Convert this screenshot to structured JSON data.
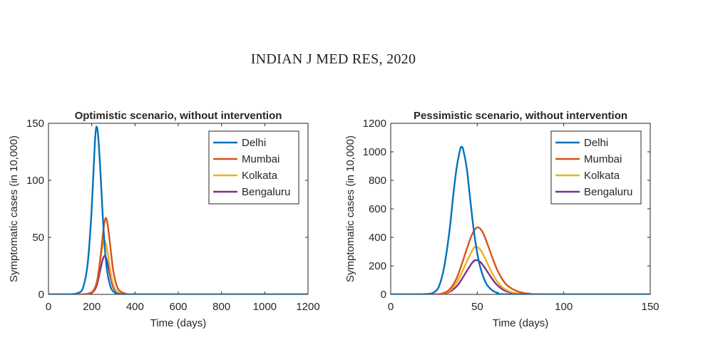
{
  "page": {
    "header": "INDIAN J MED RES, 2020"
  },
  "colors": {
    "Delhi": "#0072bd",
    "Mumbai": "#d95319",
    "Kolkata": "#edb120",
    "Bengaluru": "#7e2f8e",
    "axis": "#262626"
  },
  "chart_data": [
    {
      "type": "line",
      "title": "Optimistic scenario, without intervention",
      "xlabel": "Time (days)",
      "ylabel": "Symptomatic cases (in 10,000)",
      "xlim": [
        0,
        1200
      ],
      "ylim": [
        0,
        150
      ],
      "xticks": [
        0,
        200,
        400,
        600,
        800,
        1000,
        1200
      ],
      "yticks": [
        0,
        50,
        100,
        150
      ],
      "legend_position": "top-right",
      "grid": false,
      "series": [
        {
          "name": "Delhi",
          "peak_x": 222,
          "peak_y": 147,
          "x": [
            0,
            100,
            140,
            160,
            180,
            195,
            205,
            215,
            222,
            230,
            240,
            250,
            260,
            270,
            285,
            300,
            330,
            400,
            1200
          ],
          "y": [
            0,
            0.1,
            1.5,
            6,
            25,
            60,
            95,
            135,
            147,
            138,
            108,
            72,
            42,
            22,
            8,
            2.5,
            0.3,
            0,
            0
          ]
        },
        {
          "name": "Mumbai",
          "peak_x": 265,
          "peak_y": 67,
          "x": [
            0,
            150,
            190,
            210,
            225,
            240,
            250,
            258,
            265,
            272,
            280,
            290,
            300,
            315,
            330,
            360,
            420,
            1200
          ],
          "y": [
            0,
            0.1,
            1,
            4,
            12,
            32,
            50,
            62,
            67,
            63,
            52,
            35,
            20,
            8,
            3,
            0.5,
            0,
            0
          ]
        },
        {
          "name": "Kolkata",
          "peak_x": 258,
          "peak_y": 47,
          "x": [
            0,
            150,
            190,
            210,
            225,
            238,
            248,
            258,
            266,
            275,
            285,
            295,
            310,
            325,
            350,
            420,
            1200
          ],
          "y": [
            0,
            0.1,
            1,
            4,
            12,
            28,
            40,
            47,
            44,
            35,
            22,
            12,
            4,
            1.5,
            0.3,
            0,
            0
          ]
        },
        {
          "name": "Bengaluru",
          "peak_x": 260,
          "peak_y": 34,
          "x": [
            0,
            150,
            190,
            210,
            225,
            238,
            250,
            260,
            268,
            278,
            288,
            300,
            315,
            330,
            360,
            420,
            1200
          ],
          "y": [
            0,
            0.1,
            0.8,
            3,
            9,
            20,
            30,
            34,
            31,
            23,
            14,
            6,
            2,
            0.6,
            0.1,
            0,
            0
          ]
        }
      ]
    },
    {
      "type": "line",
      "title": "Pessimistic scenario, without intervention",
      "xlabel": "Time (days)",
      "ylabel": "Symptomatic cases (in 10,000)",
      "xlim": [
        0,
        150
      ],
      "ylim": [
        0,
        1200
      ],
      "xticks": [
        0,
        50,
        100,
        150
      ],
      "yticks": [
        0,
        200,
        400,
        600,
        800,
        1000,
        1200
      ],
      "legend_position": "top-right",
      "grid": false,
      "series": [
        {
          "name": "Delhi",
          "peak_x": 41,
          "peak_y": 1035,
          "x": [
            0,
            20,
            25,
            28,
            31,
            34,
            36,
            38,
            40,
            41,
            42,
            44,
            46,
            48,
            50,
            52,
            55,
            58,
            62,
            70,
            150
          ],
          "y": [
            0,
            2,
            15,
            60,
            200,
            450,
            680,
            880,
            1010,
            1035,
            1010,
            880,
            660,
            450,
            290,
            180,
            80,
            35,
            10,
            1,
            0
          ]
        },
        {
          "name": "Mumbai",
          "peak_x": 50,
          "peak_y": 470,
          "x": [
            0,
            25,
            30,
            34,
            38,
            41,
            44,
            47,
            50,
            53,
            56,
            59,
            62,
            66,
            70,
            75,
            80,
            90,
            150
          ],
          "y": [
            0,
            1,
            8,
            35,
            110,
            210,
            320,
            420,
            470,
            440,
            350,
            250,
            160,
            80,
            40,
            15,
            5,
            0.5,
            0
          ]
        },
        {
          "name": "Kolkata",
          "peak_x": 49,
          "peak_y": 335,
          "x": [
            0,
            25,
            30,
            34,
            38,
            41,
            44,
            47,
            49,
            52,
            55,
            58,
            61,
            65,
            70,
            75,
            85,
            150
          ],
          "y": [
            0,
            1,
            6,
            25,
            80,
            150,
            230,
            305,
            335,
            310,
            240,
            165,
            100,
            45,
            15,
            5,
            0.5,
            0
          ]
        },
        {
          "name": "Bengaluru",
          "peak_x": 49,
          "peak_y": 240,
          "x": [
            0,
            25,
            30,
            34,
            38,
            41,
            44,
            47,
            49,
            52,
            55,
            58,
            61,
            65,
            70,
            75,
            85,
            150
          ],
          "y": [
            0,
            1,
            4,
            18,
            55,
            105,
            165,
            220,
            240,
            225,
            175,
            120,
            72,
            32,
            10,
            3,
            0.3,
            0
          ]
        }
      ]
    }
  ]
}
